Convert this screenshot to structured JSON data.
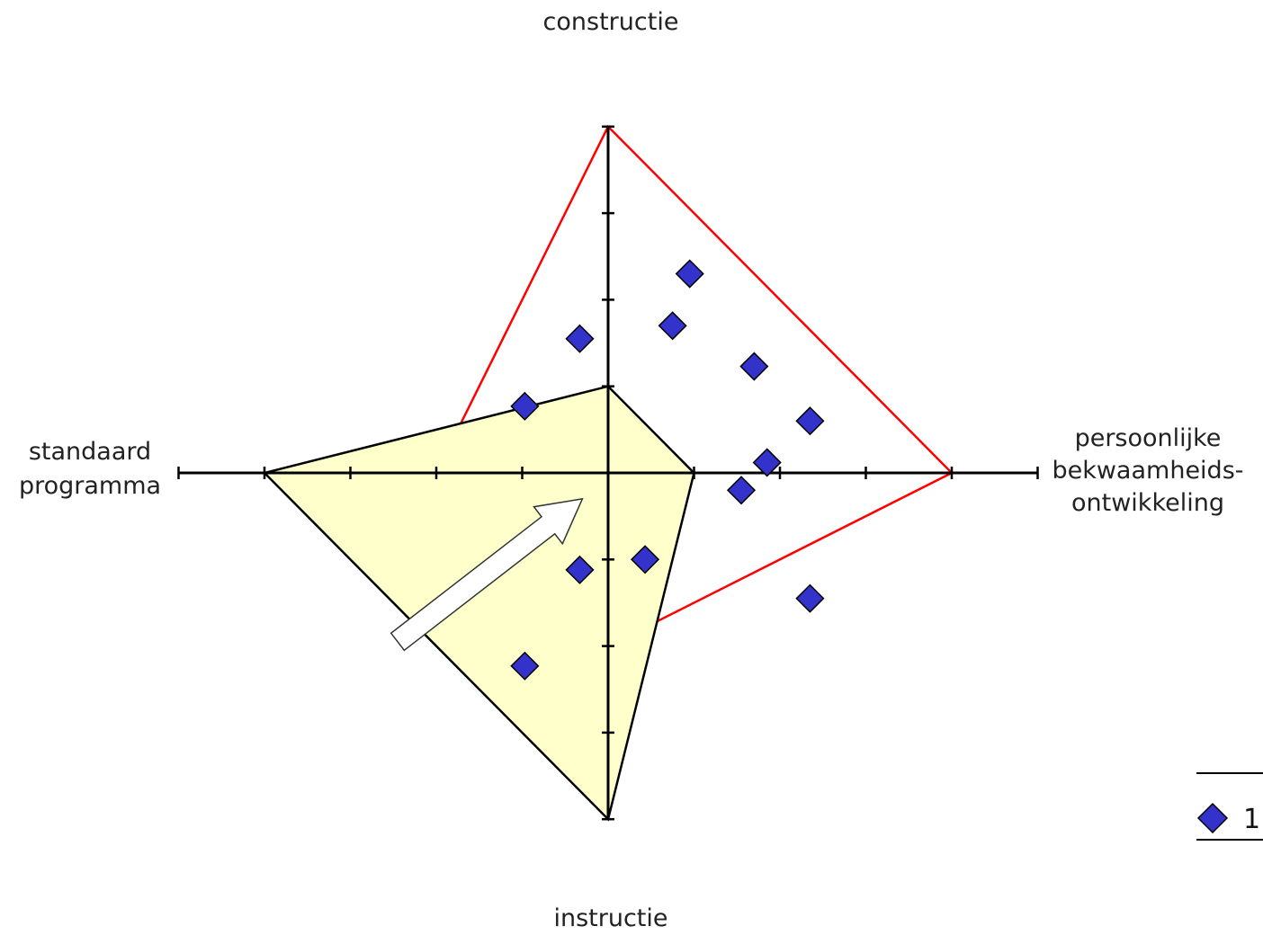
{
  "chart_data": {
    "type": "scatter",
    "axes": {
      "up": "constructie",
      "right": [
        "persoonlijke",
        "bekwaamheids-",
        "ontwikkeling"
      ],
      "down": "instructie",
      "left": [
        "standaard",
        "programma"
      ]
    },
    "xlim": [
      -5,
      5
    ],
    "ylim": [
      -4,
      4
    ],
    "grid": false,
    "legend_position": "bottom-right",
    "legend_entries": [
      "1"
    ],
    "series": [
      {
        "name": "1",
        "marker": "diamond",
        "color": "#3333cc",
        "points": [
          {
            "x": 0.95,
            "y": 2.3
          },
          {
            "x": -0.33,
            "y": 1.55
          },
          {
            "x": 0.75,
            "y": 1.7
          },
          {
            "x": 1.7,
            "y": 1.23
          },
          {
            "x": -0.97,
            "y": 0.77
          },
          {
            "x": 2.35,
            "y": 0.6
          },
          {
            "x": 1.85,
            "y": 0.12
          },
          {
            "x": 1.55,
            "y": -0.2
          },
          {
            "x": 0.43,
            "y": -1.0
          },
          {
            "x": -0.33,
            "y": -1.12
          },
          {
            "x": 2.35,
            "y": -1.45
          },
          {
            "x": -0.97,
            "y": -2.23
          }
        ]
      }
    ],
    "polygons": [
      {
        "stroke": "#ff0000",
        "fill": "none",
        "up": 4,
        "right": 4,
        "down": 2,
        "left": 2
      },
      {
        "stroke": "#000000",
        "fill": "#ffffcc",
        "up": 1,
        "right": 1,
        "down": 4,
        "left": 4
      }
    ],
    "arrow": {
      "direction": "toward-center",
      "from": [
        -2.45,
        -1.95
      ],
      "to": [
        -0.3,
        -0.3
      ]
    }
  }
}
